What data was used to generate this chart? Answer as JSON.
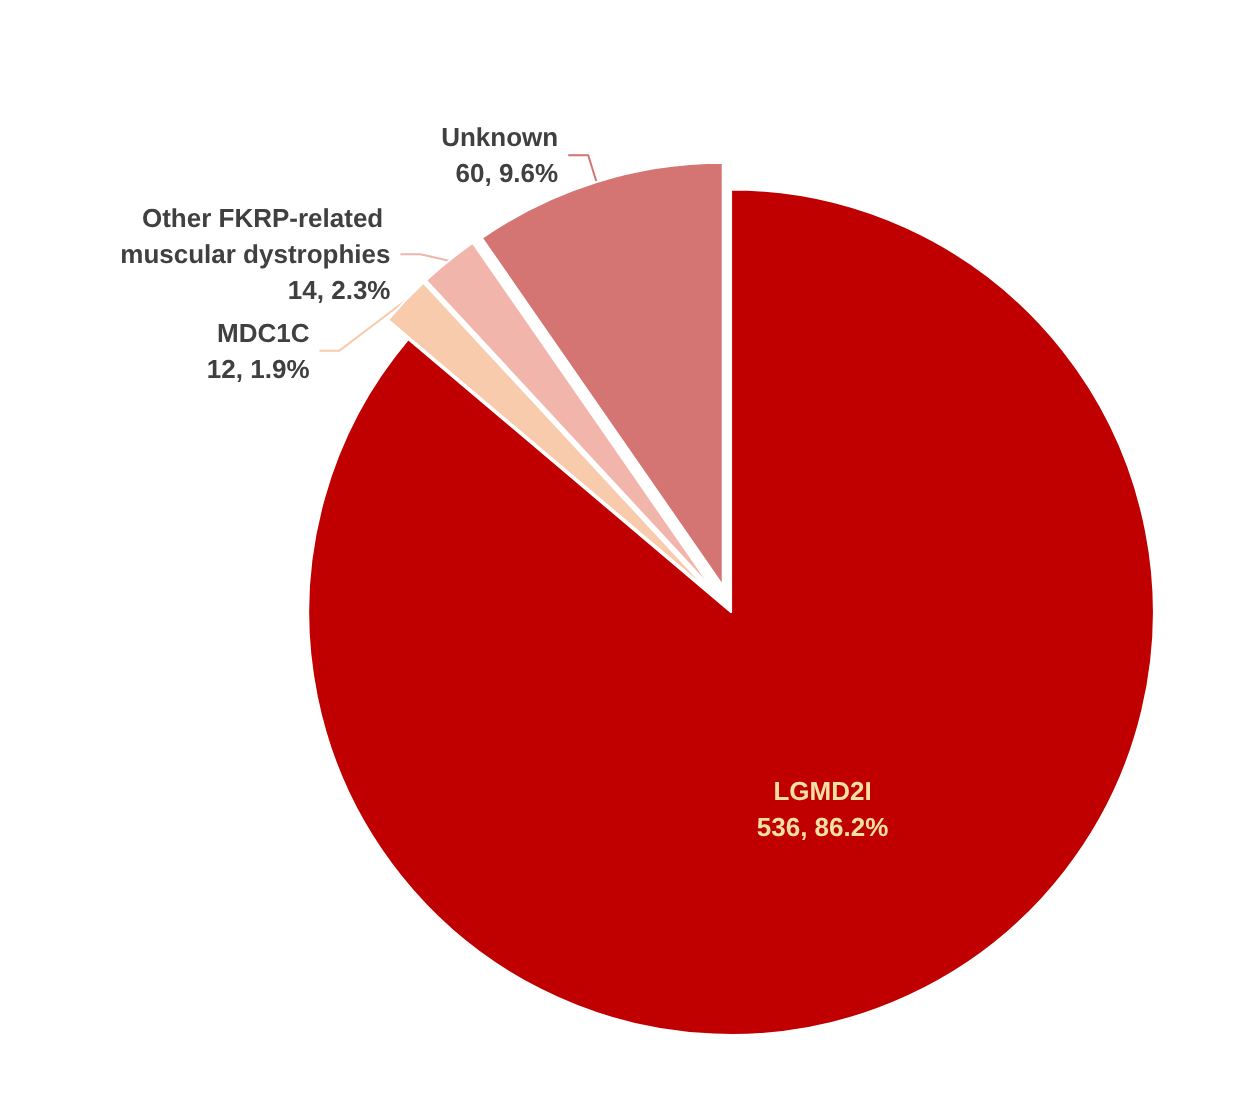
{
  "chart_data": {
    "type": "pie",
    "categories": [
      "LGMD2I",
      "MDC1C",
      "Other FKRP-related muscular dystrophies",
      "Unknown"
    ],
    "values": [
      536,
      12,
      14,
      60
    ],
    "colors": [
      "#c00000",
      "#f8cbad",
      "#f2b5ac",
      "#d47473"
    ],
    "value_labels": [
      "536, 86.2%",
      "12, 1.9%",
      "14, 2.3%",
      "60, 9.6%"
    ],
    "legend": false
  }
}
